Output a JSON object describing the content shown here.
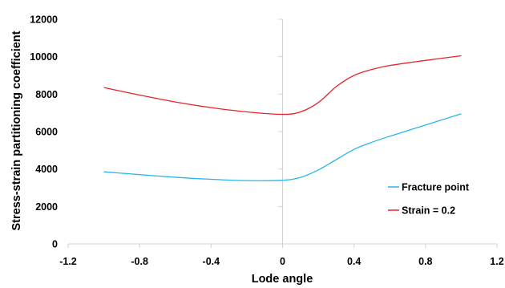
{
  "chart_data": {
    "type": "line",
    "title": "",
    "xlabel": "Lode angle",
    "ylabel": "Stress-strain partitioning coefficient",
    "xlim": [
      -1.2,
      1.2
    ],
    "ylim": [
      0,
      12000
    ],
    "xticks": [
      -1.2,
      -0.8,
      -0.4,
      0,
      0.4,
      0.8,
      1.2
    ],
    "yticks": [
      0,
      2000,
      4000,
      6000,
      8000,
      10000,
      12000
    ],
    "xtick_labels": [
      "-1.2",
      "-0.8",
      "-0.4",
      "0",
      "0.4",
      "0.8",
      "1.2"
    ],
    "ytick_labels": [
      "0",
      "2000",
      "4000",
      "6000",
      "8000",
      "10000",
      "12000"
    ],
    "grid": false,
    "legend_position": "right",
    "series": [
      {
        "name": "Fracture point",
        "color": "#29b6e8",
        "x": [
          -1.0,
          -0.8,
          -0.6,
          -0.4,
          -0.2,
          0.0,
          0.1,
          0.2,
          0.3,
          0.4,
          0.5,
          0.6,
          0.8,
          1.0
        ],
        "y": [
          3850,
          3700,
          3560,
          3450,
          3380,
          3400,
          3550,
          3950,
          4500,
          5050,
          5430,
          5750,
          6350,
          6950
        ]
      },
      {
        "name": "Strain = 0.2",
        "color": "#e8232a",
        "x": [
          -1.0,
          -0.8,
          -0.6,
          -0.4,
          -0.2,
          0.0,
          0.1,
          0.2,
          0.3,
          0.4,
          0.5,
          0.6,
          0.8,
          1.0
        ],
        "y": [
          8350,
          7950,
          7580,
          7280,
          7050,
          6920,
          7050,
          7550,
          8400,
          9000,
          9320,
          9530,
          9800,
          10050
        ]
      }
    ]
  }
}
